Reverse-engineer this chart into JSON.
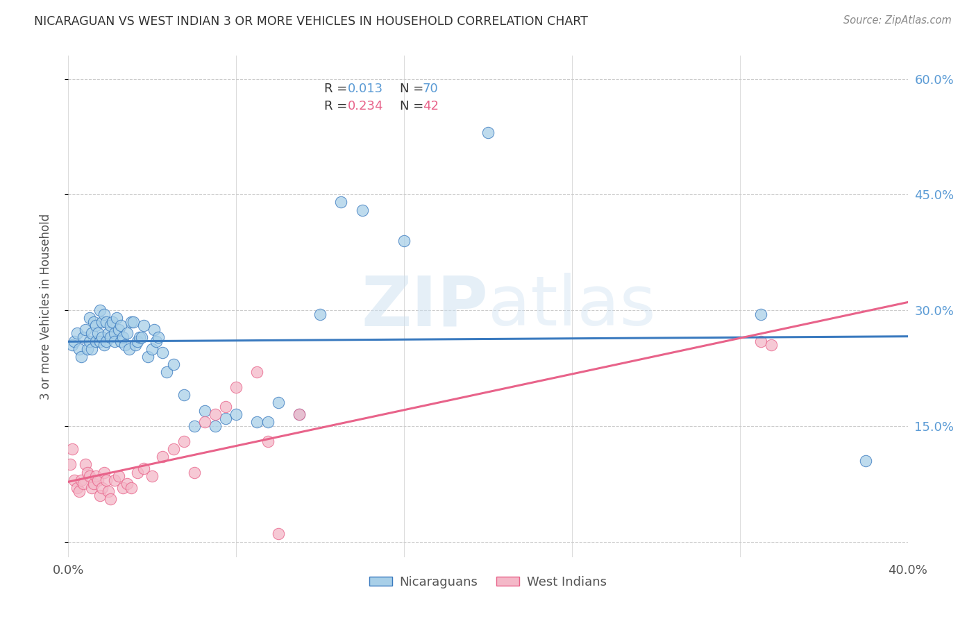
{
  "title": "NICARAGUAN VS WEST INDIAN 3 OR MORE VEHICLES IN HOUSEHOLD CORRELATION CHART",
  "source": "Source: ZipAtlas.com",
  "ylabel": "3 or more Vehicles in Household",
  "xlim": [
    0.0,
    0.4
  ],
  "ylim": [
    -0.02,
    0.63
  ],
  "yticks": [
    0.0,
    0.15,
    0.3,
    0.45,
    0.6
  ],
  "ytick_labels": [
    "",
    "15.0%",
    "30.0%",
    "45.0%",
    "60.0%"
  ],
  "xticks": [
    0.0,
    0.08,
    0.16,
    0.24,
    0.32,
    0.4
  ],
  "xtick_labels": [
    "0.0%",
    "",
    "",
    "",
    "",
    "40.0%"
  ],
  "watermark_zip": "ZIP",
  "watermark_atlas": "atlas",
  "legend_r1": "R = 0.013",
  "legend_n1": "N = 70",
  "legend_r2": "R = 0.234",
  "legend_n2": "N = 42",
  "legend_label1": "Nicaraguans",
  "legend_label2": "West Indians",
  "color_blue": "#a8cfe8",
  "color_pink": "#f4b8c8",
  "line_color_blue": "#3a7abf",
  "line_color_pink": "#e8638a",
  "title_color": "#333333",
  "axis_label_color": "#555555",
  "tick_color_right": "#5b9bd5",
  "background_color": "#ffffff",
  "grid_color": "#cccccc",
  "nicaraguan_x": [
    0.002,
    0.003,
    0.004,
    0.005,
    0.006,
    0.007,
    0.008,
    0.009,
    0.01,
    0.01,
    0.011,
    0.011,
    0.012,
    0.013,
    0.013,
    0.014,
    0.015,
    0.015,
    0.016,
    0.016,
    0.017,
    0.017,
    0.018,
    0.018,
    0.019,
    0.02,
    0.02,
    0.021,
    0.022,
    0.022,
    0.023,
    0.024,
    0.025,
    0.025,
    0.026,
    0.027,
    0.028,
    0.029,
    0.03,
    0.031,
    0.032,
    0.033,
    0.034,
    0.035,
    0.036,
    0.038,
    0.04,
    0.041,
    0.042,
    0.043,
    0.045,
    0.047,
    0.05,
    0.055,
    0.06,
    0.065,
    0.07,
    0.075,
    0.08,
    0.09,
    0.095,
    0.1,
    0.11,
    0.12,
    0.13,
    0.14,
    0.16,
    0.2,
    0.33,
    0.38
  ],
  "nicaraguan_y": [
    0.255,
    0.26,
    0.27,
    0.25,
    0.24,
    0.265,
    0.275,
    0.25,
    0.26,
    0.29,
    0.27,
    0.25,
    0.285,
    0.26,
    0.28,
    0.27,
    0.3,
    0.26,
    0.285,
    0.265,
    0.295,
    0.255,
    0.285,
    0.26,
    0.27,
    0.265,
    0.28,
    0.285,
    0.27,
    0.26,
    0.29,
    0.275,
    0.28,
    0.26,
    0.265,
    0.255,
    0.27,
    0.25,
    0.285,
    0.285,
    0.255,
    0.26,
    0.265,
    0.265,
    0.28,
    0.24,
    0.25,
    0.275,
    0.26,
    0.265,
    0.245,
    0.22,
    0.23,
    0.19,
    0.15,
    0.17,
    0.15,
    0.16,
    0.165,
    0.155,
    0.155,
    0.18,
    0.165,
    0.295,
    0.44,
    0.43,
    0.39,
    0.53,
    0.295,
    0.105
  ],
  "west_indian_x": [
    0.001,
    0.002,
    0.003,
    0.004,
    0.005,
    0.006,
    0.007,
    0.008,
    0.009,
    0.01,
    0.011,
    0.012,
    0.013,
    0.014,
    0.015,
    0.016,
    0.017,
    0.018,
    0.019,
    0.02,
    0.022,
    0.024,
    0.026,
    0.028,
    0.03,
    0.033,
    0.036,
    0.04,
    0.045,
    0.05,
    0.055,
    0.06,
    0.065,
    0.07,
    0.075,
    0.08,
    0.09,
    0.095,
    0.1,
    0.11,
    0.33,
    0.335
  ],
  "west_indian_y": [
    0.1,
    0.12,
    0.08,
    0.07,
    0.065,
    0.08,
    0.075,
    0.1,
    0.09,
    0.085,
    0.07,
    0.075,
    0.085,
    0.08,
    0.06,
    0.07,
    0.09,
    0.08,
    0.065,
    0.055,
    0.08,
    0.085,
    0.07,
    0.075,
    0.07,
    0.09,
    0.095,
    0.085,
    0.11,
    0.12,
    0.13,
    0.09,
    0.155,
    0.165,
    0.175,
    0.2,
    0.22,
    0.13,
    0.01,
    0.165,
    0.26,
    0.255
  ]
}
